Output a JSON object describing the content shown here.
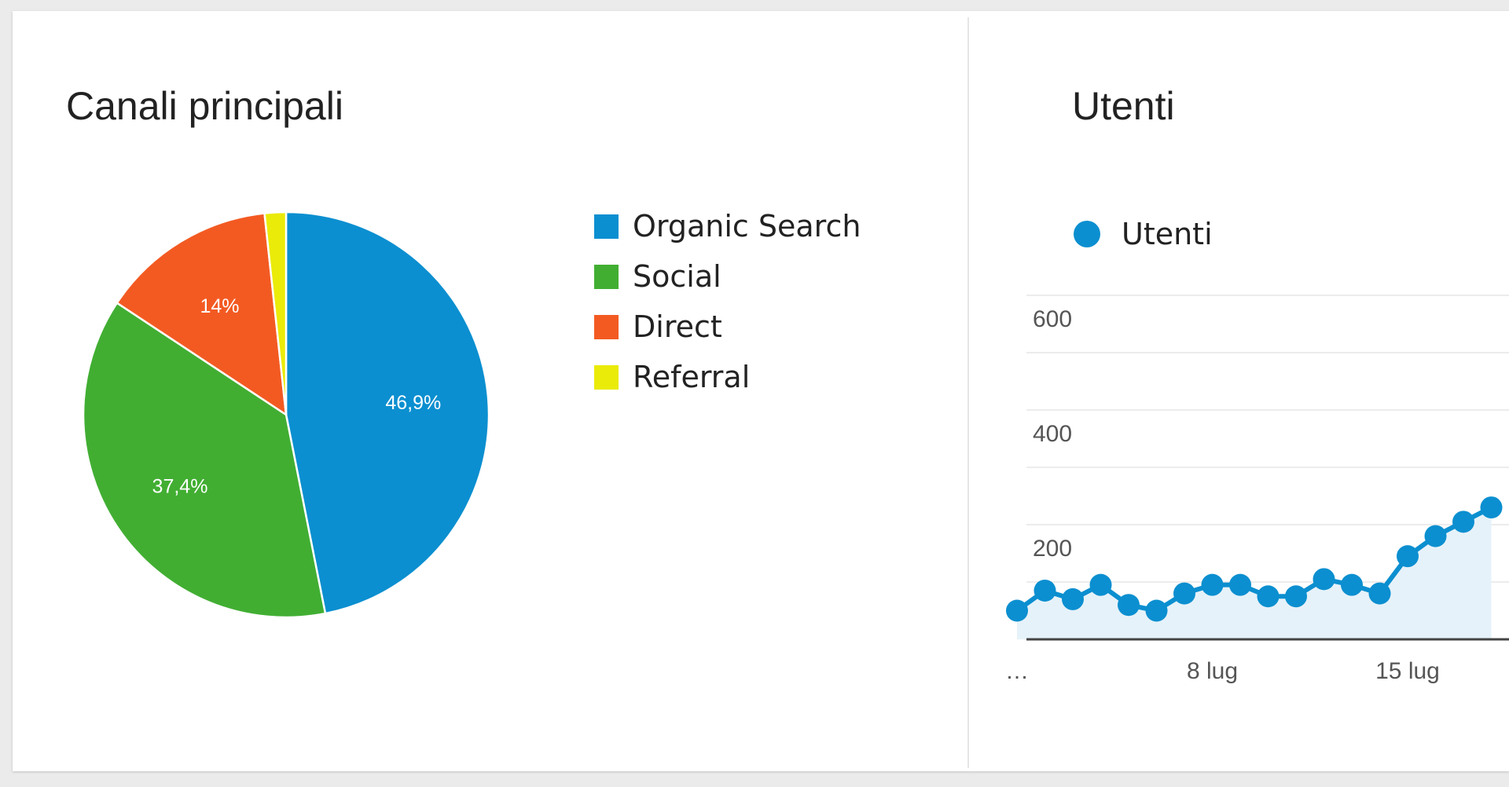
{
  "colors": {
    "organic": "#0b8fd0",
    "social": "#41ae32",
    "direct": "#f35a22",
    "referral": "#eaeb09",
    "utenti_line": "#0b8fd0",
    "utenti_fill": "#e6f2f9",
    "grid": "#e6e6e6",
    "axis": "#444444",
    "tick_text": "#555555"
  },
  "chart_data": [
    {
      "type": "pie",
      "title": "Canali principali",
      "slices": [
        {
          "name": "Organic Search",
          "value": 46.9,
          "label": "46,9%",
          "color": "#0b8fd0"
        },
        {
          "name": "Social",
          "value": 37.4,
          "label": "37,4%",
          "color": "#41ae32"
        },
        {
          "name": "Direct",
          "value": 14.0,
          "label": "14%",
          "color": "#f35a22"
        },
        {
          "name": "Referral",
          "value": 1.7,
          "label": "",
          "color": "#eaeb09"
        }
      ],
      "legend_position": "right"
    },
    {
      "type": "area",
      "title": "Utenti",
      "series": [
        {
          "name": "Utenti",
          "values": [
            50,
            85,
            70,
            95,
            60,
            50,
            80,
            95,
            95,
            75,
            75,
            105,
            95,
            80,
            145,
            180,
            205,
            230
          ]
        }
      ],
      "ylim": [
        0,
        600
      ],
      "yticks": [
        "600",
        "400",
        "200"
      ],
      "xtick_labels": [
        {
          "index": 0,
          "label": "…"
        },
        {
          "index": 7,
          "label": "8 lug"
        },
        {
          "index": 14,
          "label": "15 lug"
        }
      ],
      "grid": true,
      "legend_position": "top-left"
    }
  ]
}
